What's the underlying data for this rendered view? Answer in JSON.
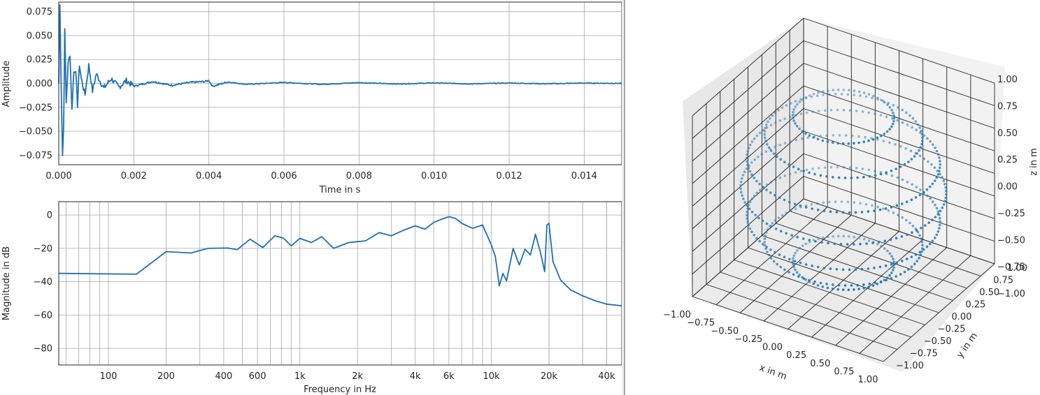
{
  "chart_data": [
    {
      "type": "line",
      "xlabel": "Time in s",
      "ylabel": "Amplitude",
      "xlim": [
        0,
        0.015
      ],
      "ylim": [
        -0.085,
        0.085
      ],
      "xticks": [
        0.0,
        0.002,
        0.004,
        0.006,
        0.008,
        0.01,
        0.012,
        0.014
      ],
      "xtick_labels": [
        "0.000",
        "0.002",
        "0.004",
        "0.006",
        "0.008",
        "0.010",
        "0.012",
        "0.014"
      ],
      "yticks": [
        0.075,
        0.05,
        0.025,
        0.0,
        -0.025,
        -0.05,
        -0.075
      ],
      "ytick_labels": [
        "0.075",
        "0.050",
        "0.025",
        "0.000",
        "−0.025",
        "−0.050",
        "−0.075"
      ],
      "grid": true,
      "color": "#1f6fb4",
      "x": [
        0.0,
        3e-05,
        6e-05,
        0.0001,
        0.00013,
        0.00016,
        0.0002,
        0.00025,
        0.0003,
        0.00035,
        0.0004,
        0.00045,
        0.0005,
        0.00055,
        0.0006,
        0.0007,
        0.0008,
        0.0009,
        0.001,
        0.0012,
        0.0014,
        0.0016,
        0.0018,
        0.002,
        0.0025,
        0.003,
        0.0035,
        0.0039,
        0.004,
        0.0041,
        0.0045,
        0.005,
        0.006,
        0.007,
        0.008,
        0.009,
        0.01,
        0.011,
        0.012,
        0.013,
        0.014,
        0.015
      ],
      "y": [
        0.0,
        0.082,
        0.01,
        -0.075,
        -0.045,
        0.055,
        -0.02,
        0.02,
        0.031,
        -0.028,
        0.012,
        0.015,
        -0.023,
        0.02,
        0.005,
        -0.012,
        0.019,
        -0.008,
        0.01,
        -0.005,
        0.005,
        -0.004,
        0.003,
        -0.003,
        0.002,
        -0.002,
        0.001,
        0.002,
        0.003,
        -0.003,
        0.0015,
        -0.001,
        0.001,
        -0.001,
        0.0008,
        -0.0006,
        0.0005,
        -0.0005,
        0.0004,
        -0.0004,
        0.0003,
        0.0
      ]
    },
    {
      "type": "line",
      "xlabel": "Frequency in Hz",
      "ylabel": "Magnitude in dB",
      "xscale": "log",
      "xlim": [
        55,
        48000
      ],
      "ylim": [
        -90,
        8
      ],
      "xticks": [
        100,
        200,
        400,
        600,
        1000,
        2000,
        4000,
        6000,
        10000,
        20000,
        40000
      ],
      "xtick_labels": [
        "100",
        "200",
        "400",
        "600",
        "1k",
        "2k",
        "4k",
        "6k",
        "10k",
        "20k",
        "40k"
      ],
      "yticks": [
        0,
        -20,
        -40,
        -60,
        -80
      ],
      "ytick_labels": [
        "0",
        "−20",
        "−40",
        "−60",
        "−80"
      ],
      "grid": true,
      "color": "#1f6fb4",
      "x": [
        55,
        140,
        200,
        270,
        330,
        420,
        470,
        550,
        640,
        740,
        820,
        900,
        1000,
        1150,
        1300,
        1500,
        1800,
        2200,
        2600,
        3000,
        3500,
        4000,
        4500,
        5000,
        5500,
        6000,
        6500,
        7000,
        8000,
        9000,
        10000,
        10500,
        11000,
        11500,
        12000,
        13000,
        14000,
        15000,
        16000,
        17000,
        18000,
        19000,
        19500,
        20000,
        21000,
        23000,
        26000,
        30000,
        35000,
        40000,
        48000
      ],
      "y": [
        -35,
        -35.5,
        -22,
        -22.8,
        -20,
        -19.8,
        -20.8,
        -14.5,
        -19.5,
        -12.5,
        -13.8,
        -18.5,
        -14,
        -16.5,
        -13,
        -20,
        -16.5,
        -15.5,
        -10.5,
        -12.5,
        -9,
        -6.5,
        -8.5,
        -4.5,
        -2.5,
        -1,
        -2,
        -5,
        -8,
        -6,
        -18,
        -25,
        -42.5,
        -35,
        -39.5,
        -20,
        -30,
        -20.5,
        -24,
        -11.5,
        -22,
        -34,
        -6,
        -5,
        -28,
        -39,
        -45,
        -48.5,
        -51.5,
        -53.5,
        -54.5
      ]
    },
    {
      "type": "scatter",
      "xlabel": "x in m",
      "ylabel": "y in m",
      "zlabel": "z in m",
      "xlim": [
        -1.0,
        1.0
      ],
      "ylim": [
        -1.0,
        1.0
      ],
      "zlim": [
        -1.0,
        1.0
      ],
      "xtick_labels": [
        "−1.00",
        "−0.75",
        "−0.50",
        "−0.25",
        "0.00",
        "0.25",
        "0.50",
        "0.75",
        "1.00"
      ],
      "ytick_labels": [
        "−1.00",
        "−0.75",
        "−0.50",
        "−0.25",
        "0.00",
        "0.25",
        "0.50",
        "0.75",
        "1.00"
      ],
      "ztick_labels": [
        "1.00",
        "0.75",
        "0.50",
        "0.25",
        "0.00",
        "−0.25",
        "−0.50",
        "−0.75",
        "−1.00"
      ],
      "color": "#1f77b4",
      "rings_z": [
        0.87,
        0.64,
        0.34,
        0.0,
        -0.34,
        -0.64,
        -0.87
      ],
      "points_per_ring": [
        60,
        80,
        96,
        100,
        96,
        80,
        60
      ]
    }
  ]
}
